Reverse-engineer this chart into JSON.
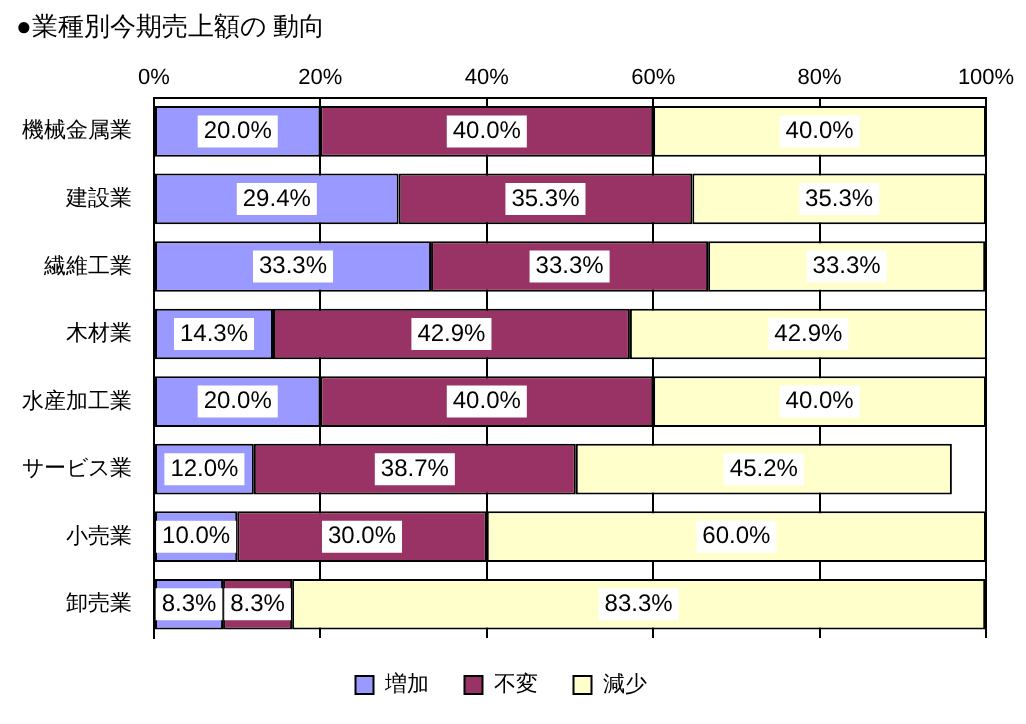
{
  "chart_data": {
    "type": "bar",
    "orientation": "horizontal",
    "stacked": true,
    "title": "●業種別今期売上額の 動向",
    "categories": [
      "機械金属業",
      "建設業",
      "繊維工業",
      "木材業",
      "水産加工業",
      "サービス業",
      "小売業",
      "卸売業"
    ],
    "series": [
      {
        "name": "増加",
        "color": "#9999ff",
        "values": [
          20.0,
          29.4,
          33.3,
          14.3,
          20.0,
          12.0,
          10.0,
          8.3
        ],
        "value_labels": [
          "20.0%",
          "29.4%",
          "33.3%",
          "14.3%",
          "20.0%",
          "12.0%",
          "10.0%",
          "8.3%"
        ]
      },
      {
        "name": "不変",
        "color": "#993366",
        "values": [
          40.0,
          35.3,
          33.3,
          42.9,
          40.0,
          38.7,
          30.0,
          8.3
        ],
        "value_labels": [
          "40.0%",
          "35.3%",
          "33.3%",
          "42.9%",
          "40.0%",
          "38.7%",
          "30.0%",
          "8.3%"
        ]
      },
      {
        "name": "減少",
        "color": "#ffffcc",
        "values": [
          40.0,
          35.3,
          33.3,
          42.9,
          40.0,
          45.2,
          60.0,
          83.3
        ],
        "value_labels": [
          "40.0%",
          "35.3%",
          "33.3%",
          "42.9%",
          "40.0%",
          "45.2%",
          "60.0%",
          "83.3%"
        ]
      }
    ],
    "xlim": [
      0,
      100
    ],
    "xticks": [
      {
        "value": 0,
        "label": "0%"
      },
      {
        "value": 20,
        "label": "20%"
      },
      {
        "value": 40,
        "label": "40%"
      },
      {
        "value": 60,
        "label": "60%"
      },
      {
        "value": 80,
        "label": "80%"
      },
      {
        "value": 100,
        "label": "100%"
      }
    ],
    "grid": "x",
    "legend": "bottom"
  }
}
